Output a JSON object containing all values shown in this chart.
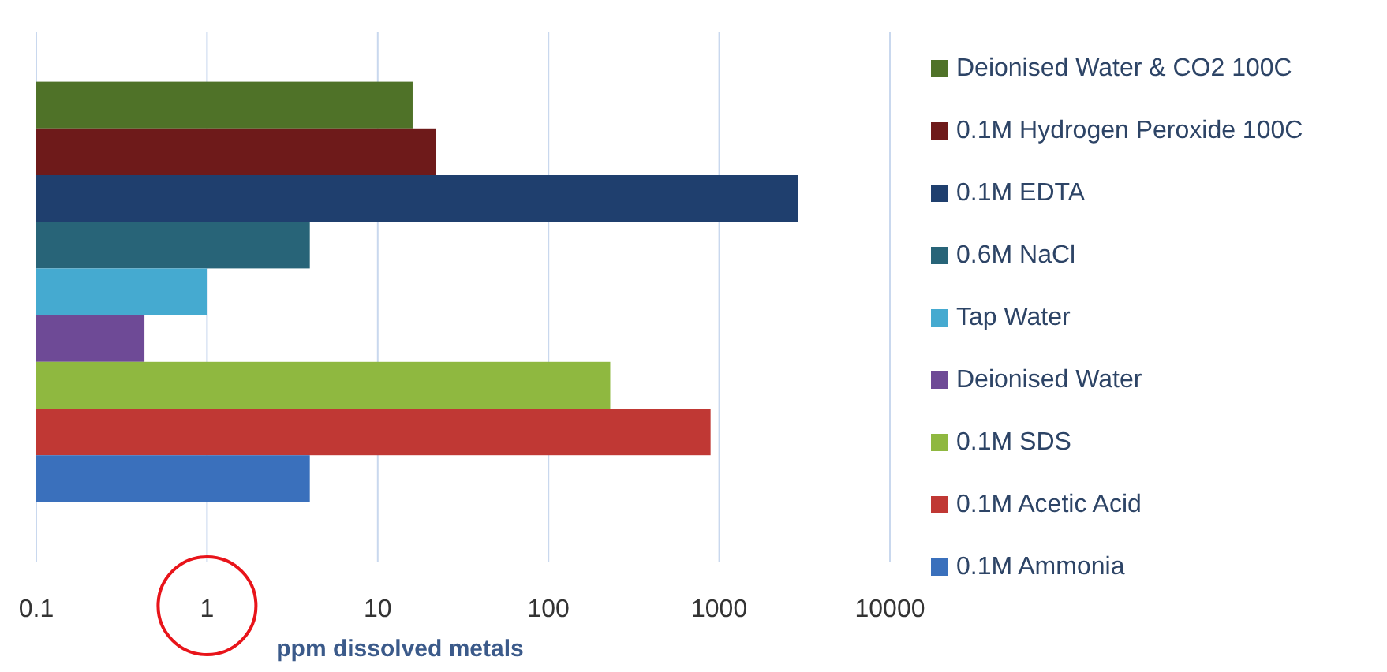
{
  "chart_data": {
    "type": "bar",
    "orientation": "horizontal",
    "categories": [
      null
    ],
    "xlabel": "ppm dissolved metals",
    "log": "x",
    "xlim": [
      0.1,
      10000
    ],
    "xticks": [
      0.1,
      1,
      10,
      100,
      1000,
      10000
    ],
    "grid": "x",
    "legend": "right",
    "series": [
      {
        "name": "Deionised Water & CO2 100C",
        "color": "#4f7228",
        "values": [
          16
        ]
      },
      {
        "name": "0.1M Hydrogen Peroxide 100C",
        "color": "#6e1a1a",
        "values": [
          22
        ]
      },
      {
        "name": "0.1M EDTA",
        "color": "#1f3f6e",
        "values": [
          2900
        ]
      },
      {
        "name": "0.6M NaCl",
        "color": "#286478",
        "values": [
          4
        ]
      },
      {
        "name": "Tap Water",
        "color": "#45aad0",
        "values": [
          1
        ]
      },
      {
        "name": "Deionised Water",
        "color": "#6e4a96",
        "values": [
          0.43
        ]
      },
      {
        "name": "0.1M SDS",
        "color": "#8fb840",
        "values": [
          230
        ]
      },
      {
        "name": "0.1M Acetic Acid",
        "color": "#c03834",
        "values": [
          890
        ]
      },
      {
        "name": "0.1M Ammonia",
        "color": "#3a70bc",
        "values": [
          4
        ]
      }
    ]
  }
}
